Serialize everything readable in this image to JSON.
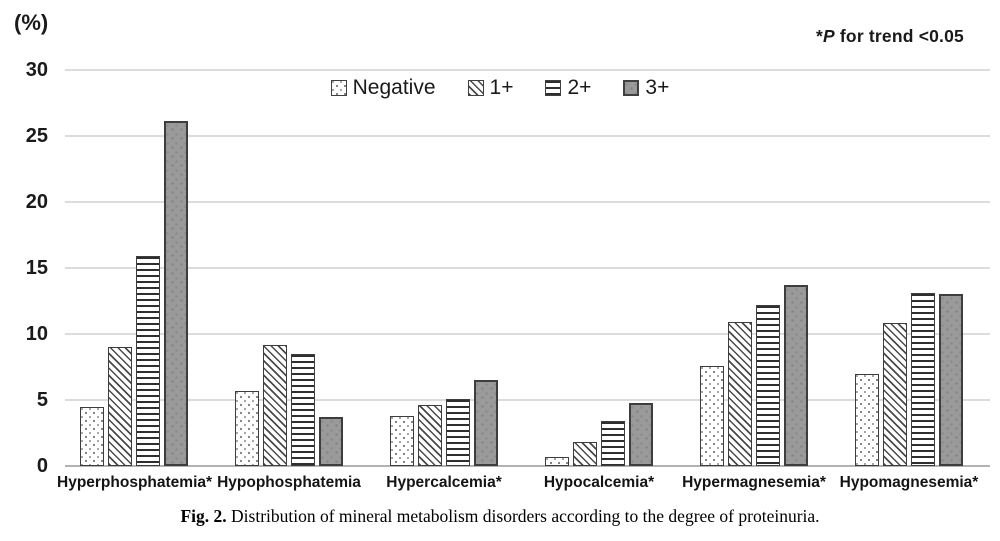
{
  "annotation": {
    "star": "*",
    "p": "P",
    "rest": " for trend <0.05"
  },
  "caption": {
    "fig": "Fig. 2.",
    "text": "  Distribution of mineral metabolism disorders according to the degree of proteinuria."
  },
  "colors": {
    "gridline": "#dcdcdc",
    "axis_line": "#b3b3b3",
    "bar_outline": "#3d3d3d",
    "bar_solid_fill": "#9a9a9a",
    "text": "#1a1a1a"
  },
  "chart_data": {
    "type": "bar",
    "title": "",
    "xlabel": "",
    "ylabel": "(%)",
    "ylim": [
      0,
      30
    ],
    "yticks": [
      0,
      5,
      10,
      15,
      20,
      25,
      30
    ],
    "grid": true,
    "legend_position": "top-center",
    "annotation": "*P for trend <0.05",
    "categories": [
      "Hyperphosphatemia*",
      "Hypophosphatemia",
      "Hypercalcemia*",
      "Hypocalcemia*",
      "Hypermagnesemia*",
      "Hypomagnesemia*"
    ],
    "series": [
      {
        "name": "Negative",
        "pattern": "dots",
        "values": [
          4.5,
          5.7,
          3.8,
          0.7,
          7.6,
          7.0
        ]
      },
      {
        "name": "1+",
        "pattern": "diag",
        "values": [
          9.0,
          9.2,
          4.6,
          1.8,
          10.9,
          10.8
        ]
      },
      {
        "name": "2+",
        "pattern": "hlines",
        "values": [
          15.9,
          8.5,
          5.1,
          3.4,
          12.2,
          13.1
        ]
      },
      {
        "name": "3+",
        "pattern": "solid",
        "values": [
          26.1,
          3.7,
          6.5,
          4.8,
          13.7,
          13.0
        ]
      }
    ]
  }
}
